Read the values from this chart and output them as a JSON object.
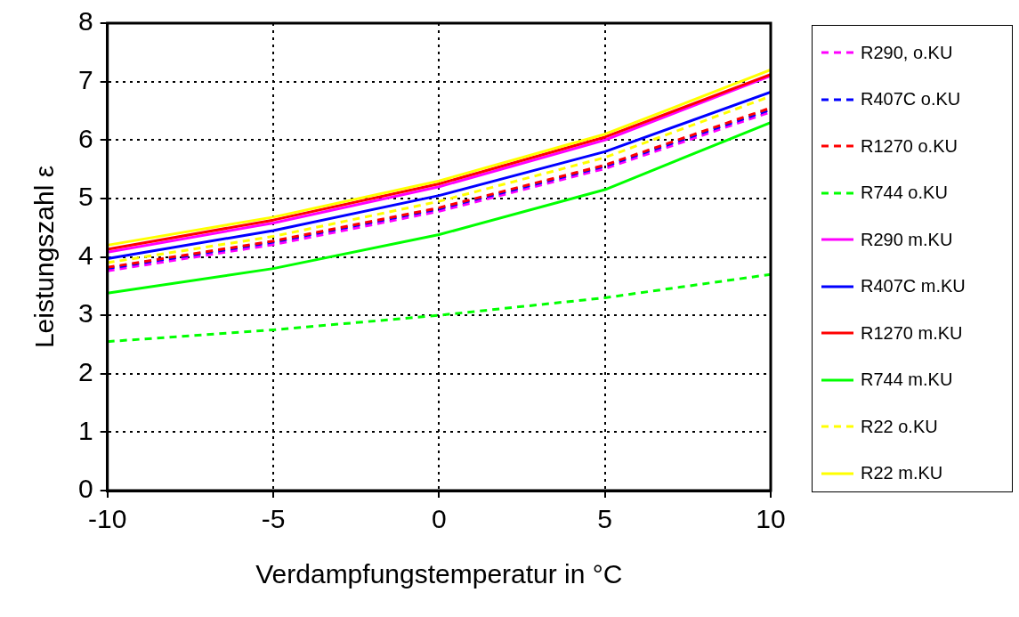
{
  "chart_data": {
    "type": "line",
    "xlabel": "Verdampfungstemperatur in °C",
    "ylabel": "Leistungszahl ε",
    "x": [
      -10,
      -5,
      0,
      5,
      10
    ],
    "xlim": [
      -10,
      10
    ],
    "xticks": [
      -10,
      -5,
      0,
      5,
      10
    ],
    "ylim": [
      0,
      8
    ],
    "yticks": [
      0,
      1,
      2,
      3,
      4,
      5,
      6,
      7,
      8
    ],
    "grid": true,
    "legend": "right",
    "marker": "none",
    "series": [
      {
        "name": "R290, o.KU",
        "color": "#ff00ff",
        "line_style": "dashed",
        "values": [
          3.76,
          4.21,
          4.78,
          5.51,
          6.48
        ]
      },
      {
        "name": "R407C o.KU",
        "color": "#0000ff",
        "line_style": "dashed",
        "values": [
          3.8,
          4.25,
          4.82,
          5.55,
          6.52
        ]
      },
      {
        "name": "R1270 o.KU",
        "color": "#ff0000",
        "line_style": "dashed",
        "values": [
          3.82,
          4.27,
          4.84,
          5.57,
          6.55
        ]
      },
      {
        "name": "R744 o.KU",
        "color": "#00ff00",
        "line_style": "dashed",
        "values": [
          2.55,
          2.75,
          3.0,
          3.3,
          3.7
        ]
      },
      {
        "name": "R290 m.KU",
        "color": "#ff00ff",
        "line_style": "solid",
        "values": [
          4.08,
          4.58,
          5.2,
          6.0,
          7.1
        ]
      },
      {
        "name": "R407C m.KU",
        "color": "#0000ff",
        "line_style": "solid",
        "values": [
          3.97,
          4.45,
          5.05,
          5.8,
          6.82
        ]
      },
      {
        "name": "R1270 m.KU",
        "color": "#ff0000",
        "line_style": "solid",
        "values": [
          4.13,
          4.63,
          5.25,
          6.05,
          7.12
        ]
      },
      {
        "name": "R744 m.KU",
        "color": "#00ff00",
        "line_style": "solid",
        "values": [
          3.38,
          3.8,
          4.38,
          5.15,
          6.3
        ]
      },
      {
        "name": "R22 o.KU",
        "color": "#ffff00",
        "line_style": "dashed",
        "values": [
          3.9,
          4.35,
          4.95,
          5.7,
          6.75
        ]
      },
      {
        "name": "R22 m.KU",
        "color": "#ffff00",
        "line_style": "solid",
        "values": [
          4.2,
          4.68,
          5.3,
          6.1,
          7.2
        ]
      }
    ]
  }
}
